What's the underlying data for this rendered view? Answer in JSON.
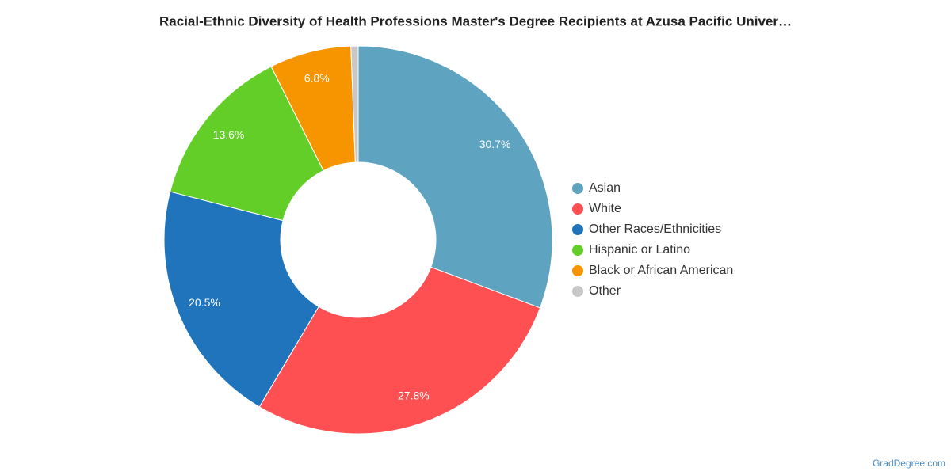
{
  "chart_data": {
    "type": "donut",
    "title": "Racial-Ethnic Diversity of Health Professions Master's Degree Recipients at Azusa Pacific Univer…",
    "categories": [
      "Asian",
      "White",
      "Other Races/Ethnicities",
      "Hispanic or Latino",
      "Black or African American",
      "Other"
    ],
    "values": [
      30.7,
      27.8,
      20.5,
      13.6,
      6.8,
      0.6
    ],
    "value_labels": [
      "30.7%",
      "27.8%",
      "20.5%",
      "13.6%",
      "6.8%",
      null
    ],
    "colors": [
      "#5ea3c0",
      "#fe5052",
      "#1f74bb",
      "#63ce27",
      "#f79500",
      "#c8c8c8"
    ],
    "legend": "right"
  },
  "footer": "GradDegree.com"
}
